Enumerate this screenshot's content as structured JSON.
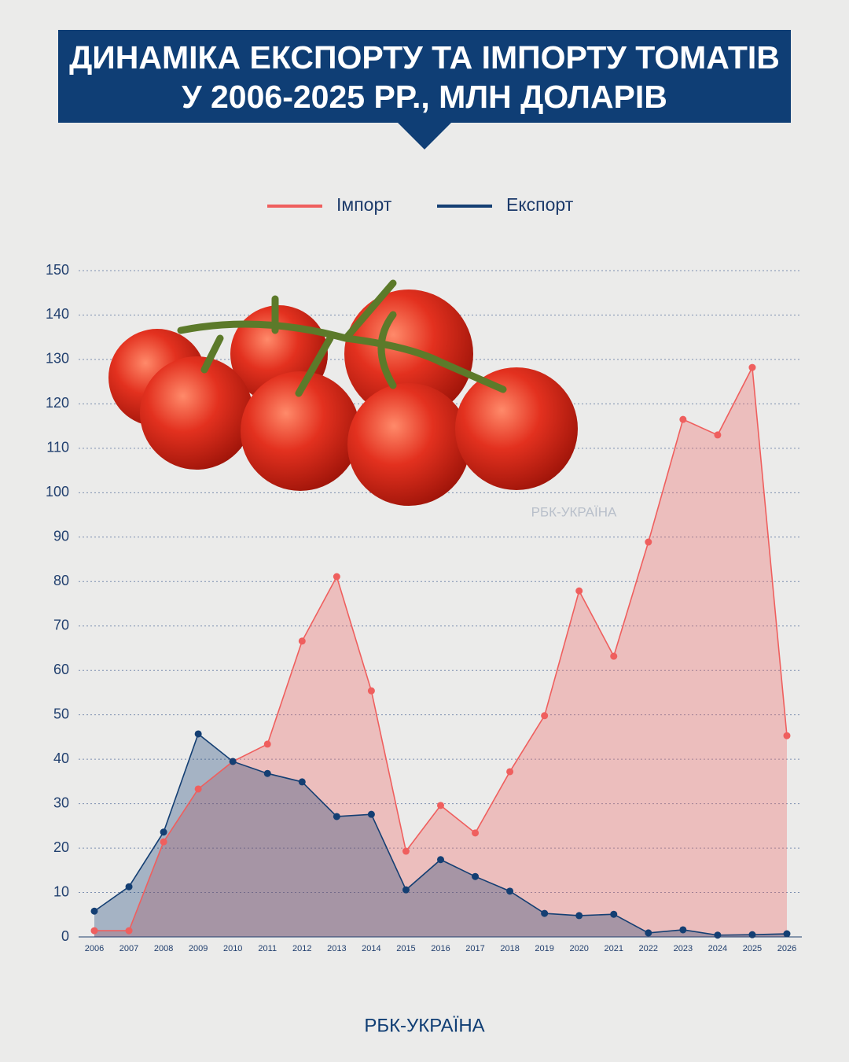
{
  "chart_data": {
    "type": "area",
    "title": [
      "ДИНАМІКА ЕКСПОРТУ ТА ІМПОРТУ ТОМАТІВ",
      "У 2006-2025 РР., МЛН ДОЛАРІВ"
    ],
    "categories": [
      "2006",
      "2007",
      "2008",
      "2009",
      "2010",
      "2011",
      "2012",
      "2013",
      "2014",
      "2015",
      "2016",
      "2017",
      "2018",
      "2019",
      "2020",
      "2021",
      "2022",
      "2023",
      "2024",
      "2025",
      "2026"
    ],
    "series": [
      {
        "name": "Імпорт",
        "color": "#ef5f5e",
        "values": [
          1.4,
          1.4,
          21.4,
          33.3,
          39.5,
          43.4,
          66.6,
          81.1,
          55.4,
          19.3,
          29.6,
          23.4,
          37.2,
          49.8,
          77.9,
          63.2,
          88.9,
          116.5,
          113,
          128.2,
          45.3
        ]
      },
      {
        "name": "Експорт",
        "color": "#143f73",
        "values": [
          5.8,
          11.3,
          23.6,
          45.7,
          39.5,
          36.8,
          34.9,
          27.1,
          27.6,
          10.6,
          17.4,
          13.6,
          10.3,
          5.3,
          4.8,
          5.1,
          0.9,
          1.6,
          0.4,
          0.5,
          0.7
        ]
      }
    ],
    "ylim": [
      0,
      150
    ],
    "yticks": [
      0,
      10,
      20,
      30,
      40,
      50,
      60,
      70,
      80,
      90,
      100,
      110,
      120,
      130,
      140,
      150
    ],
    "grid": true,
    "legend": "top",
    "source": "РБК-УКРАЇНА"
  }
}
